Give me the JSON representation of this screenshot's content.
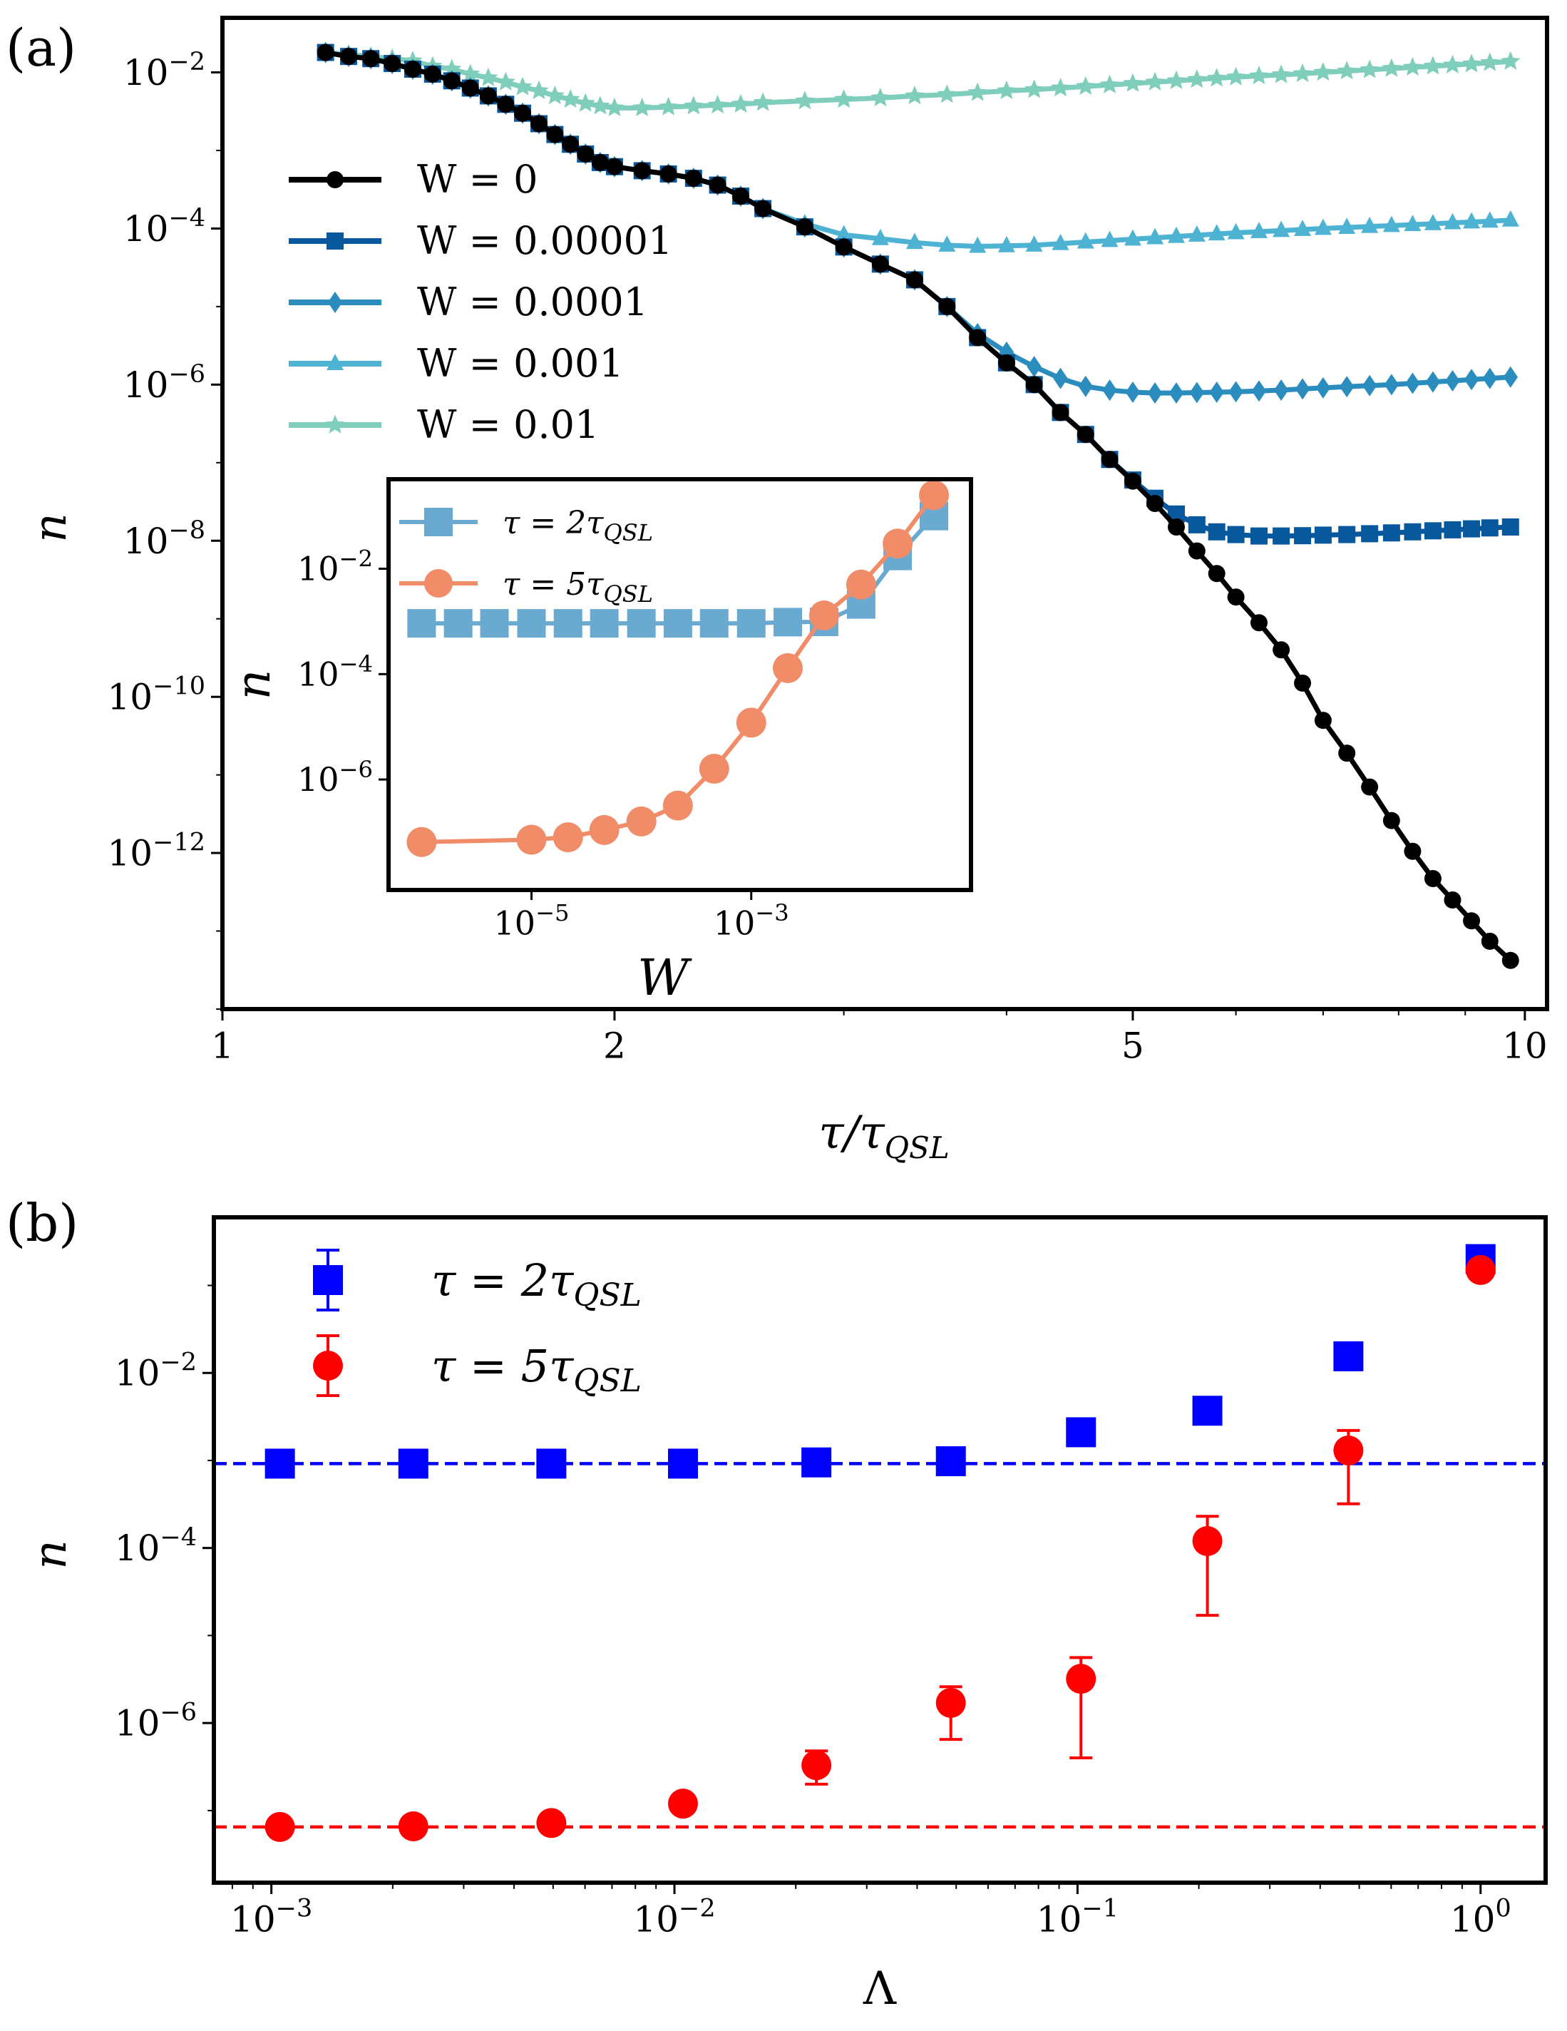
{
  "panel_a_label": "(a)",
  "panel_b_label": "(b)",
  "chart_data": [
    {
      "id": "panel-a-main",
      "type": "line",
      "xscale": "log",
      "yscale": "log",
      "xlabel": "τ/τQSL",
      "ylabel": "n",
      "xlim": [
        1,
        10.4
      ],
      "ylim": [
        1e-14,
        0.05
      ],
      "xticks": [
        1,
        2,
        5,
        10
      ],
      "xtick_labels": [
        "1",
        "2",
        "5",
        "10"
      ],
      "yticks": [
        1e-12,
        1e-10,
        1e-08,
        1e-06,
        0.0001,
        0.01
      ],
      "ytick_labels": [
        [
          "10",
          "−12"
        ],
        [
          "10",
          "−10"
        ],
        [
          "10",
          "−8"
        ],
        [
          "10",
          "−6"
        ],
        [
          "10",
          "−4"
        ],
        [
          "10",
          "−2"
        ]
      ],
      "legend_position": "upper-left",
      "series": [
        {
          "name": "W = 0.01",
          "color": "#7fcdbb",
          "marker": "star",
          "x": [
            1.2,
            1.25,
            1.3,
            1.35,
            1.4,
            1.45,
            1.5,
            1.55,
            1.6,
            1.65,
            1.7,
            1.75,
            1.8,
            1.85,
            1.9,
            1.95,
            2.0,
            2.1,
            2.2,
            2.3,
            2.4,
            2.5,
            2.6,
            2.8,
            3.0,
            3.2,
            3.4,
            3.6,
            3.8,
            4.0,
            4.2,
            4.4,
            4.6,
            4.8,
            5.0,
            5.2,
            5.4,
            5.6,
            5.8,
            6.0,
            6.25,
            6.5,
            6.75,
            7.0,
            7.3,
            7.6,
            7.9,
            8.2,
            8.5,
            8.8,
            9.1,
            9.4,
            9.75
          ],
          "y": [
            0.018,
            0.017,
            0.016,
            0.015,
            0.014,
            0.012,
            0.011,
            0.0095,
            0.0085,
            0.0075,
            0.0065,
            0.0058,
            0.005,
            0.0045,
            0.004,
            0.0037,
            0.0035,
            0.0035,
            0.0036,
            0.0037,
            0.0038,
            0.0039,
            0.0041,
            0.0043,
            0.0045,
            0.0047,
            0.005,
            0.0052,
            0.0055,
            0.0058,
            0.006,
            0.0063,
            0.0066,
            0.0069,
            0.0072,
            0.0075,
            0.0078,
            0.0081,
            0.0084,
            0.0087,
            0.009,
            0.0093,
            0.0096,
            0.01,
            0.0104,
            0.0108,
            0.0112,
            0.0116,
            0.012,
            0.0124,
            0.0128,
            0.0133,
            0.0138
          ]
        },
        {
          "name": "W = 0.001",
          "color": "#4eb3d3",
          "marker": "triangle",
          "x": [
            1.2,
            1.25,
            1.3,
            1.35,
            1.4,
            1.45,
            1.5,
            1.55,
            1.6,
            1.65,
            1.7,
            1.75,
            1.8,
            1.85,
            1.9,
            1.95,
            2.0,
            2.1,
            2.2,
            2.3,
            2.4,
            2.5,
            2.6,
            2.8,
            3.0,
            3.2,
            3.4,
            3.6,
            3.8,
            4.0,
            4.2,
            4.4,
            4.6,
            4.8,
            5.0,
            5.2,
            5.4,
            5.6,
            5.8,
            6.0,
            6.25,
            6.5,
            6.75,
            7.0,
            7.3,
            7.6,
            7.9,
            8.2,
            8.5,
            8.8,
            9.1,
            9.4,
            9.75
          ],
          "y": [
            0.018,
            0.016,
            0.015,
            0.013,
            0.011,
            0.0095,
            0.0078,
            0.0063,
            0.005,
            0.0039,
            0.003,
            0.0022,
            0.0016,
            0.0012,
            0.0009,
            0.0007,
            0.00062,
            0.00055,
            0.0005,
            0.00044,
            0.00036,
            0.00026,
            0.00018,
            0.000115,
            8.3e-05,
            7.4e-05,
            6.6e-05,
            6.1e-05,
            5.9e-05,
            6e-05,
            6.1e-05,
            6.4e-05,
            6.7e-05,
            7e-05,
            7.3e-05,
            7.6e-05,
            7.9e-05,
            8.2e-05,
            8.5e-05,
            8.8e-05,
            9.1e-05,
            9.4e-05,
            9.7e-05,
            0.0001,
            0.000103,
            0.000106,
            0.000109,
            0.000112,
            0.000115,
            0.000118,
            0.000121,
            0.000124,
            0.000128
          ]
        },
        {
          "name": "W = 0.0001",
          "color": "#2b8cbe",
          "marker": "diamond",
          "x": [
            1.2,
            1.25,
            1.3,
            1.35,
            1.4,
            1.45,
            1.5,
            1.55,
            1.6,
            1.65,
            1.7,
            1.75,
            1.8,
            1.85,
            1.9,
            1.95,
            2.0,
            2.1,
            2.2,
            2.3,
            2.4,
            2.5,
            2.6,
            2.8,
            3.0,
            3.2,
            3.4,
            3.6,
            3.8,
            4.0,
            4.2,
            4.4,
            4.6,
            4.8,
            5.0,
            5.2,
            5.4,
            5.6,
            5.8,
            6.0,
            6.25,
            6.5,
            6.75,
            7.0,
            7.3,
            7.6,
            7.9,
            8.2,
            8.5,
            8.8,
            9.1,
            9.4,
            9.75
          ],
          "y": [
            0.018,
            0.016,
            0.015,
            0.013,
            0.011,
            0.0095,
            0.0078,
            0.0063,
            0.005,
            0.0039,
            0.003,
            0.0022,
            0.0016,
            0.0012,
            0.0009,
            0.0007,
            0.00062,
            0.00055,
            0.0005,
            0.00044,
            0.00036,
            0.00026,
            0.00018,
            0.000105,
            5.8e-05,
            3.5e-05,
            2.2e-05,
            1e-05,
            4.5e-06,
            2.6e-06,
            1.7e-06,
            1.2e-06,
            9.5e-07,
            8.5e-07,
            8e-07,
            7.8e-07,
            7.8e-07,
            7.9e-07,
            8e-07,
            8.1e-07,
            8.3e-07,
            8.5e-07,
            8.8e-07,
            9.1e-07,
            9.4e-07,
            9.7e-07,
            1e-06,
            1.04e-06,
            1.08e-06,
            1.12e-06,
            1.16e-06,
            1.2e-06,
            1.25e-06
          ]
        },
        {
          "name": "W = 0.00001",
          "color": "#08589e",
          "marker": "square",
          "x": [
            1.2,
            1.25,
            1.3,
            1.35,
            1.4,
            1.45,
            1.5,
            1.55,
            1.6,
            1.65,
            1.7,
            1.75,
            1.8,
            1.85,
            1.9,
            1.95,
            2.0,
            2.1,
            2.2,
            2.3,
            2.4,
            2.5,
            2.6,
            2.8,
            3.0,
            3.2,
            3.4,
            3.6,
            3.8,
            4.0,
            4.2,
            4.4,
            4.6,
            4.8,
            5.0,
            5.2,
            5.4,
            5.6,
            5.8,
            6.0,
            6.25,
            6.5,
            6.75,
            7.0,
            7.3,
            7.6,
            7.9,
            8.2,
            8.5,
            8.8,
            9.1,
            9.4,
            9.75
          ],
          "y": [
            0.018,
            0.016,
            0.015,
            0.013,
            0.011,
            0.0095,
            0.0078,
            0.0063,
            0.005,
            0.0039,
            0.003,
            0.0022,
            0.0016,
            0.0012,
            0.0009,
            0.0007,
            0.00062,
            0.00055,
            0.0005,
            0.00044,
            0.00036,
            0.00026,
            0.00018,
            0.000105,
            5.8e-05,
            3.5e-05,
            2.2e-05,
            1e-05,
            4e-06,
            1.9e-06,
            1e-06,
            4.4e-07,
            2.3e-07,
            1.1e-07,
            6e-08,
            3.5e-08,
            2.2e-08,
            1.6e-08,
            1.3e-08,
            1.2e-08,
            1.15e-08,
            1.15e-08,
            1.16e-08,
            1.18e-08,
            1.2e-08,
            1.23e-08,
            1.26e-08,
            1.3e-08,
            1.34e-08,
            1.38e-08,
            1.42e-08,
            1.46e-08,
            1.5e-08
          ]
        },
        {
          "name": "W = 0",
          "color": "#000000",
          "marker": "circle",
          "x": [
            1.2,
            1.25,
            1.3,
            1.35,
            1.4,
            1.45,
            1.5,
            1.55,
            1.6,
            1.65,
            1.7,
            1.75,
            1.8,
            1.85,
            1.9,
            1.95,
            2.0,
            2.1,
            2.2,
            2.3,
            2.4,
            2.5,
            2.6,
            2.8,
            3.0,
            3.2,
            3.4,
            3.6,
            3.8,
            4.0,
            4.2,
            4.4,
            4.6,
            4.8,
            5.0,
            5.2,
            5.4,
            5.6,
            5.8,
            6.0,
            6.25,
            6.5,
            6.75,
            7.0,
            7.3,
            7.6,
            7.9,
            8.2,
            8.5,
            8.8,
            9.1,
            9.4,
            9.75
          ],
          "y": [
            0.018,
            0.016,
            0.015,
            0.013,
            0.011,
            0.0095,
            0.0078,
            0.0063,
            0.005,
            0.0039,
            0.003,
            0.0022,
            0.0016,
            0.0012,
            0.0009,
            0.0007,
            0.00062,
            0.00055,
            0.0005,
            0.00044,
            0.00036,
            0.00026,
            0.00018,
            0.000105,
            5.8e-05,
            3.5e-05,
            2.2e-05,
            1e-05,
            4e-06,
            1.9e-06,
            1e-06,
            4.4e-07,
            2.3e-07,
            1.1e-07,
            5.8e-08,
            3e-08,
            1.5e-08,
            7.4e-09,
            3.8e-09,
            1.9e-09,
            8.9e-10,
            4e-10,
            1.5e-10,
            5e-11,
            1.9e-11,
            7e-12,
            2.6e-12,
            1.05e-12,
            4.7e-13,
            2.5e-13,
            1.35e-13,
            7.4e-14,
            4.2e-14
          ]
        }
      ]
    },
    {
      "id": "panel-a-inset",
      "type": "line",
      "xscale": "log",
      "yscale": "log",
      "xlabel": "W",
      "ylabel": "n",
      "xlim": [
        5e-07,
        0.1
      ],
      "ylim": [
        8e-09,
        0.5
      ],
      "xticks": [
        1e-05,
        0.001
      ],
      "xtick_labels": [
        [
          "10",
          "−5"
        ],
        [
          "10",
          "−3"
        ]
      ],
      "yticks": [
        1e-06,
        0.0001,
        0.01
      ],
      "ytick_labels": [
        [
          "10",
          "−6"
        ],
        [
          "10",
          "−4"
        ],
        [
          "10",
          "−2"
        ]
      ],
      "legend_position": "upper-left",
      "series": [
        {
          "name": "τ = 2τQSL",
          "color": "#6aa9d0",
          "marker": "square",
          "x": [
            1e-06,
            2.15e-06,
            4.6e-06,
            1e-05,
            2.15e-05,
            4.6e-05,
            0.0001,
            0.000215,
            0.00046,
            0.001,
            0.00215,
            0.0046,
            0.01,
            0.0215,
            0.046
          ],
          "y": [
            0.00092,
            0.00092,
            0.00092,
            0.00092,
            0.00092,
            0.00092,
            0.00092,
            0.00092,
            0.00092,
            0.00092,
            0.00097,
            0.00098,
            0.0021,
            0.0175,
            0.1
          ]
        },
        {
          "name": "τ = 5τQSL",
          "color": "#f08d68",
          "marker": "circle",
          "x": [
            1e-06,
            1e-05,
            2.15e-05,
            4.6e-05,
            0.0001,
            0.000215,
            0.00046,
            0.001,
            0.00215,
            0.0046,
            0.01,
            0.0215,
            0.046
          ],
          "y": [
            6.5e-08,
            7.2e-08,
            8e-08,
            1.1e-07,
            1.6e-07,
            3.2e-07,
            1.6e-06,
            1.2e-05,
            0.00013,
            0.0013,
            0.005,
            0.03,
            0.25
          ]
        }
      ]
    },
    {
      "id": "panel-b",
      "type": "scatter",
      "xscale": "log",
      "yscale": "log",
      "xlabel": "Λ",
      "ylabel": "n",
      "xlim": [
        0.00072,
        1.45
      ],
      "ylim": [
        1.5e-08,
        0.6
      ],
      "xticks": [
        0.001,
        0.01,
        0.1,
        1
      ],
      "xtick_labels": [
        [
          "10",
          "−3"
        ],
        [
          "10",
          "−2"
        ],
        [
          "10",
          "−1"
        ],
        [
          "10",
          "0"
        ]
      ],
      "yticks": [
        1e-06,
        0.0001,
        0.01
      ],
      "ytick_labels": [
        [
          "10",
          "−6"
        ],
        [
          "10",
          "−4"
        ],
        [
          "10",
          "−2"
        ]
      ],
      "legend_position": "upper-left",
      "series": [
        {
          "name": "τ = 2τQSL",
          "color": "#0000ff",
          "marker": "square",
          "x": [
            0.00105,
            0.00225,
            0.00495,
            0.0105,
            0.0225,
            0.0485,
            0.102,
            0.21,
            0.47,
            1.0
          ],
          "y": [
            0.00092,
            0.00092,
            0.00092,
            0.00092,
            0.00095,
            0.00098,
            0.0021,
            0.0037,
            0.0155,
            0.2
          ],
          "err_low": [
            0.0009,
            0.0009,
            0.0009,
            0.0009,
            0.00093,
            0.00096,
            0.002,
            0.0035,
            0.015,
            0.19
          ],
          "err_high": [
            0.00094,
            0.00094,
            0.00094,
            0.00094,
            0.00097,
            0.001,
            0.0022,
            0.0039,
            0.016,
            0.21
          ],
          "reference_line": 0.00092
        },
        {
          "name": "τ = 5τQSL",
          "color": "#ff0000",
          "marker": "circle",
          "x": [
            0.00105,
            0.00225,
            0.00495,
            0.0105,
            0.0225,
            0.0485,
            0.102,
            0.21,
            0.47,
            1.0
          ],
          "y": [
            6.5e-08,
            6.6e-08,
            7.2e-08,
            1.2e-07,
            3.3e-07,
            1.7e-06,
            3.2e-06,
            0.00012,
            0.0013,
            0.15
          ],
          "err_low": [
            6.3e-08,
            6.4e-08,
            6.9e-08,
            1.08e-07,
            2e-07,
            6.5e-07,
            4e-07,
            1.7e-05,
            0.00032,
            0.15
          ],
          "err_high": [
            6.7e-08,
            6.8e-08,
            7.5e-08,
            1.35e-07,
            4.8e-07,
            2.6e-06,
            5.6e-06,
            0.00023,
            0.0022,
            0.15
          ],
          "reference_line": 6.5e-08
        }
      ]
    }
  ]
}
